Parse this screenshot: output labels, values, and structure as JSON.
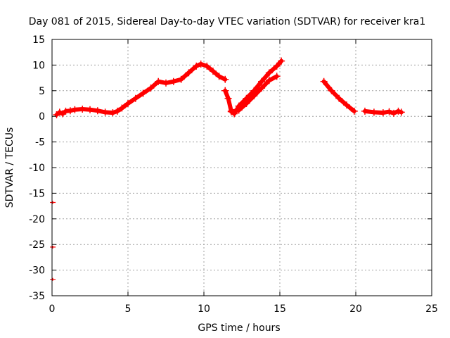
{
  "chart_data": {
    "type": "scatter",
    "title": "Day 081 of 2015, Sidereal Day-to-day VTEC variation (SDTVAR) for receiver kra1",
    "xlabel": "GPS time / hours",
    "ylabel": "SDTVAR / TECUs",
    "xlim": [
      0,
      25
    ],
    "ylim": [
      -35,
      15
    ],
    "xticks": [
      0,
      5,
      10,
      15,
      20,
      25
    ],
    "yticks": [
      15,
      10,
      5,
      0,
      -5,
      -10,
      -15,
      -20,
      -25,
      -30,
      -35
    ],
    "grid": true,
    "legend": "none",
    "series_color": "#ff0000",
    "series": [
      {
        "name": "sdtvar",
        "segments": [
          [
            [
              0.3,
              0.3
            ],
            [
              0.5,
              0.8
            ],
            [
              0.7,
              0.5
            ],
            [
              0.9,
              1.0
            ],
            [
              1.2,
              1.1
            ],
            [
              1.5,
              1.3
            ],
            [
              2.0,
              1.4
            ],
            [
              2.5,
              1.3
            ],
            [
              3.0,
              1.1
            ],
            [
              3.5,
              0.8
            ],
            [
              4.0,
              0.7
            ],
            [
              4.3,
              1.0
            ],
            [
              4.6,
              1.6
            ],
            [
              5.0,
              2.5
            ],
            [
              5.5,
              3.5
            ],
            [
              6.0,
              4.5
            ],
            [
              6.5,
              5.5
            ],
            [
              7.0,
              6.8
            ],
            [
              7.5,
              6.5
            ],
            [
              8.0,
              6.8
            ],
            [
              8.5,
              7.2
            ],
            [
              9.0,
              8.5
            ],
            [
              9.5,
              9.8
            ],
            [
              9.8,
              10.2
            ],
            [
              10.2,
              9.8
            ],
            [
              10.6,
              8.8
            ],
            [
              11.0,
              7.8
            ],
            [
              11.4,
              7.2
            ]
          ],
          [
            [
              11.4,
              5.0
            ],
            [
              11.6,
              3.5
            ],
            [
              11.8,
              1.0
            ],
            [
              12.0,
              0.5
            ],
            [
              12.3,
              2.0
            ],
            [
              12.8,
              3.5
            ],
            [
              13.3,
              5.0
            ],
            [
              13.8,
              6.8
            ],
            [
              14.3,
              8.5
            ],
            [
              14.8,
              9.8
            ],
            [
              15.1,
              10.8
            ]
          ],
          [
            [
              11.8,
              0.9
            ],
            [
              12.3,
              1.2
            ],
            [
              12.8,
              2.5
            ],
            [
              13.3,
              4.0
            ],
            [
              13.8,
              5.5
            ],
            [
              14.3,
              7.0
            ],
            [
              14.8,
              7.8
            ]
          ],
          [
            [
              17.9,
              6.8
            ],
            [
              18.4,
              5.0
            ],
            [
              18.9,
              3.5
            ],
            [
              19.4,
              2.2
            ],
            [
              19.9,
              1.0
            ]
          ],
          [
            [
              20.6,
              1.0
            ],
            [
              21.2,
              0.8
            ],
            [
              21.8,
              0.7
            ],
            [
              22.2,
              0.9
            ],
            [
              22.5,
              0.6
            ],
            [
              22.8,
              1.0
            ],
            [
              23.0,
              0.8
            ]
          ]
        ],
        "outliers": [
          [
            0.05,
            -16.8
          ],
          [
            0.05,
            -25.5
          ],
          [
            0.05,
            -31.8
          ]
        ]
      }
    ]
  }
}
